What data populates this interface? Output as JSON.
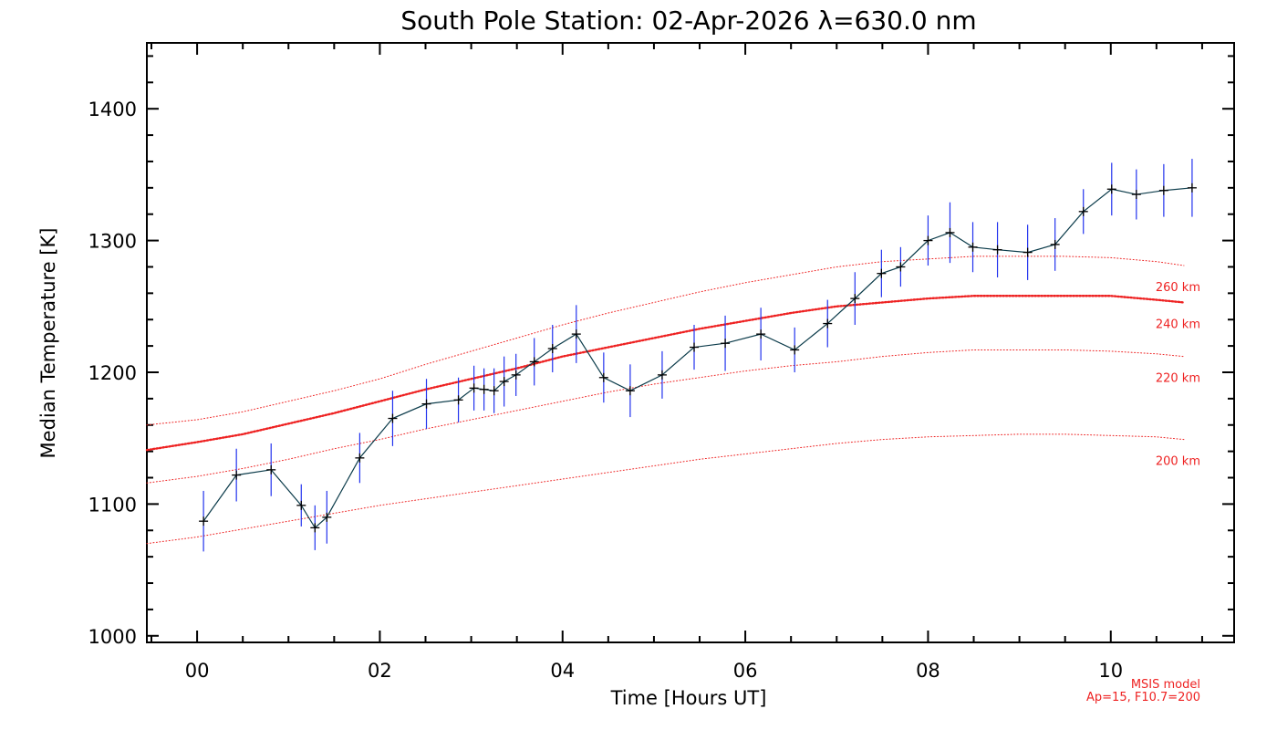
{
  "chart_data": {
    "type": "line",
    "title": "South Pole Station: 02-Apr-2026 λ=630.0 nm",
    "xlabel": "Time [Hours UT]",
    "ylabel": "Median Temperature [K]",
    "xlim": [
      -0.55,
      11.35
    ],
    "ylim": [
      995,
      1450
    ],
    "x_ticks": [
      0,
      2,
      4,
      6,
      8,
      10
    ],
    "x_tick_labels": [
      "00",
      "02",
      "04",
      "06",
      "08",
      "10"
    ],
    "y_ticks": [
      1000,
      1100,
      1200,
      1300,
      1400
    ],
    "y_tick_labels": [
      "1000",
      "1100",
      "1200",
      "1300",
      "1400"
    ],
    "grid": false,
    "series": [
      {
        "color": "#000000",
        "errorbar_color": "#2233ee",
        "points": [
          {
            "x": 0.07,
            "y": 1087,
            "err": 23
          },
          {
            "x": 0.43,
            "y": 1122,
            "err": 20
          },
          {
            "x": 0.81,
            "y": 1126,
            "err": 20
          },
          {
            "x": 1.14,
            "y": 1099,
            "err": 16
          },
          {
            "x": 1.29,
            "y": 1082,
            "err": 17
          },
          {
            "x": 1.42,
            "y": 1090,
            "err": 20
          },
          {
            "x": 1.78,
            "y": 1135,
            "err": 19
          },
          {
            "x": 2.14,
            "y": 1165,
            "err": 21
          },
          {
            "x": 2.51,
            "y": 1176,
            "err": 19
          },
          {
            "x": 2.86,
            "y": 1179,
            "err": 17
          },
          {
            "x": 3.03,
            "y": 1188,
            "err": 17
          },
          {
            "x": 3.14,
            "y": 1187,
            "err": 16
          },
          {
            "x": 3.25,
            "y": 1186,
            "err": 17
          },
          {
            "x": 3.36,
            "y": 1193,
            "err": 19
          },
          {
            "x": 3.49,
            "y": 1198,
            "err": 16
          },
          {
            "x": 3.69,
            "y": 1208,
            "err": 18
          },
          {
            "x": 3.89,
            "y": 1218,
            "err": 18
          },
          {
            "x": 4.15,
            "y": 1229,
            "err": 22
          },
          {
            "x": 4.45,
            "y": 1196,
            "err": 19
          },
          {
            "x": 4.74,
            "y": 1186,
            "err": 20
          },
          {
            "x": 5.09,
            "y": 1198,
            "err": 18
          },
          {
            "x": 5.44,
            "y": 1219,
            "err": 17
          },
          {
            "x": 5.78,
            "y": 1222,
            "err": 21
          },
          {
            "x": 6.17,
            "y": 1229,
            "err": 20
          },
          {
            "x": 6.54,
            "y": 1217,
            "err": 17
          },
          {
            "x": 6.9,
            "y": 1237,
            "err": 18
          },
          {
            "x": 7.2,
            "y": 1256,
            "err": 20
          },
          {
            "x": 7.49,
            "y": 1275,
            "err": 18
          },
          {
            "x": 7.7,
            "y": 1280,
            "err": 15
          },
          {
            "x": 8.0,
            "y": 1300,
            "err": 19
          },
          {
            "x": 8.24,
            "y": 1306,
            "err": 23
          },
          {
            "x": 8.49,
            "y": 1295,
            "err": 19
          },
          {
            "x": 8.76,
            "y": 1293,
            "err": 21
          },
          {
            "x": 9.09,
            "y": 1291,
            "err": 21
          },
          {
            "x": 9.39,
            "y": 1297,
            "err": 20
          },
          {
            "x": 9.7,
            "y": 1322,
            "err": 17
          },
          {
            "x": 10.01,
            "y": 1339,
            "err": 20
          },
          {
            "x": 10.28,
            "y": 1335,
            "err": 19
          },
          {
            "x": 10.58,
            "y": 1338,
            "err": 20
          },
          {
            "x": 10.89,
            "y": 1340,
            "err": 22
          }
        ]
      }
    ],
    "model_curves": [
      {
        "name": "260 km",
        "color": "#ee2222",
        "style": "dotted",
        "weight": "light",
        "x": [
          -0.55,
          0,
          0.5,
          1,
          1.5,
          2,
          2.5,
          3,
          3.5,
          4,
          4.5,
          5,
          5.5,
          6,
          6.5,
          7,
          7.5,
          8,
          8.5,
          9,
          9.5,
          10,
          10.5,
          10.8
        ],
        "y": [
          1160,
          1164,
          1170,
          1178,
          1186,
          1195,
          1206,
          1216,
          1226,
          1236,
          1245,
          1253,
          1261,
          1268,
          1274,
          1280,
          1284,
          1286,
          1288,
          1288,
          1288,
          1287,
          1284,
          1281
        ]
      },
      {
        "name": "240 km",
        "color": "#ee2222",
        "style": "dotted",
        "weight": "bold",
        "x": [
          -0.55,
          0,
          0.5,
          1,
          1.5,
          2,
          2.5,
          3,
          3.5,
          4,
          4.5,
          5,
          5.5,
          6,
          6.5,
          7,
          7.5,
          8,
          8.5,
          9,
          9.5,
          10,
          10.5,
          10.8
        ],
        "y": [
          1141,
          1147,
          1153,
          1161,
          1169,
          1178,
          1187,
          1195,
          1203,
          1212,
          1219,
          1226,
          1233,
          1239,
          1245,
          1250,
          1253,
          1256,
          1258,
          1258,
          1258,
          1258,
          1255,
          1253
        ]
      },
      {
        "name": "220 km",
        "color": "#ee2222",
        "style": "dotted",
        "weight": "light",
        "x": [
          -0.55,
          0,
          0.5,
          1,
          1.5,
          2,
          2.5,
          3,
          3.5,
          4,
          4.5,
          5,
          5.5,
          6,
          6.5,
          7,
          7.5,
          8,
          8.5,
          9,
          9.5,
          10,
          10.5,
          10.8
        ],
        "y": [
          1116,
          1121,
          1127,
          1134,
          1142,
          1149,
          1157,
          1164,
          1171,
          1178,
          1185,
          1191,
          1196,
          1201,
          1205,
          1208,
          1212,
          1215,
          1217,
          1217,
          1217,
          1216,
          1214,
          1212
        ]
      },
      {
        "name": "200 km",
        "color": "#ee2222",
        "style": "dotted",
        "weight": "light",
        "x": [
          -0.55,
          0,
          0.5,
          1,
          1.5,
          2,
          2.5,
          3,
          3.5,
          4,
          4.5,
          5,
          5.5,
          6,
          6.5,
          7,
          7.5,
          8,
          8.5,
          9,
          9.5,
          10,
          10.5,
          10.8
        ],
        "y": [
          1070,
          1075,
          1081,
          1087,
          1093,
          1099,
          1104,
          1109,
          1114,
          1119,
          1124,
          1129,
          1134,
          1138,
          1142,
          1146,
          1149,
          1151,
          1152,
          1153,
          1153,
          1152,
          1151,
          1149
        ]
      }
    ],
    "model_note": [
      "MSIS model",
      "Ap=15, F10.7=200"
    ]
  }
}
